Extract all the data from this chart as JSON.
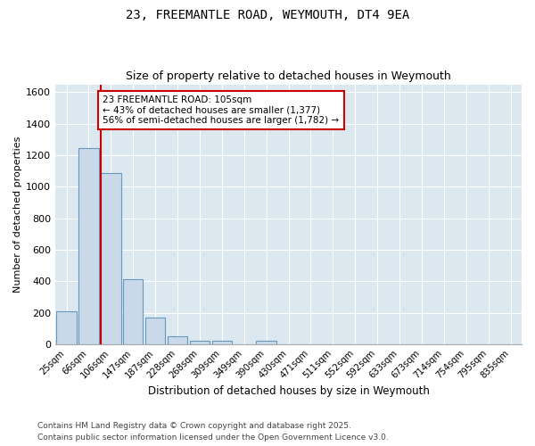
{
  "title1": "23, FREEMANTLE ROAD, WEYMOUTH, DT4 9EA",
  "title2": "Size of property relative to detached houses in Weymouth",
  "xlabel": "Distribution of detached houses by size in Weymouth",
  "ylabel": "Number of detached properties",
  "bar_color": "#c9d9ea",
  "bar_edge_color": "#6699bb",
  "background_color": "#dce8f0",
  "grid_color": "#ffffff",
  "fig_bg_color": "#ffffff",
  "categories": [
    "25sqm",
    "66sqm",
    "106sqm",
    "147sqm",
    "187sqm",
    "228sqm",
    "268sqm",
    "309sqm",
    "349sqm",
    "390sqm",
    "430sqm",
    "471sqm",
    "511sqm",
    "552sqm",
    "592sqm",
    "633sqm",
    "673sqm",
    "714sqm",
    "754sqm",
    "795sqm",
    "835sqm"
  ],
  "values": [
    210,
    1245,
    1085,
    415,
    170,
    50,
    25,
    20,
    0,
    20,
    0,
    0,
    0,
    0,
    0,
    0,
    0,
    0,
    0,
    0,
    0
  ],
  "red_line_idx": 2,
  "annotation_text": "23 FREEMANTLE ROAD: 105sqm\n← 43% of detached houses are smaller (1,377)\n56% of semi-detached houses are larger (1,782) →",
  "annotation_box_color": "#ffffff",
  "annotation_edge_color": "#cc0000",
  "red_line_color": "#cc0000",
  "ylim": [
    0,
    1650
  ],
  "yticks": [
    0,
    200,
    400,
    600,
    800,
    1000,
    1200,
    1400,
    1600
  ],
  "footer1": "Contains HM Land Registry data © Crown copyright and database right 2025.",
  "footer2": "Contains public sector information licensed under the Open Government Licence v3.0."
}
